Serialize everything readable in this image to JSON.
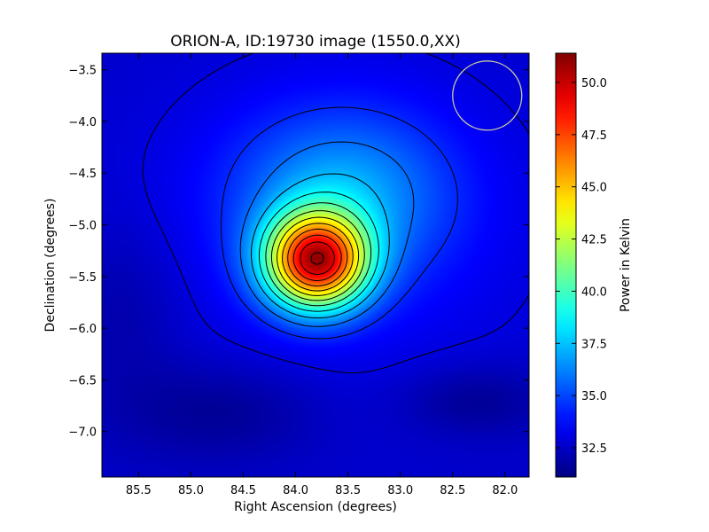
{
  "chart_data": {
    "type": "heatmap",
    "title": "ORION-A, ID:19730 image (1550.0,XX)",
    "xlabel": "Right Ascension (degrees)",
    "ylabel": "Declination (degrees)",
    "colorbar_label": "Power in Kelvin",
    "xlim": [
      85.85,
      81.77
    ],
    "ylim": [
      -7.44,
      -3.34
    ],
    "x_ticks": [
      85.5,
      85.0,
      84.5,
      84.0,
      83.5,
      83.0,
      82.5,
      82.0
    ],
    "x_tick_labels": [
      "85.5",
      "85.0",
      "84.5",
      "84.0",
      "83.5",
      "83.0",
      "82.5",
      "82.0"
    ],
    "y_ticks": [
      -3.5,
      -4.0,
      -4.5,
      -5.0,
      -5.5,
      -6.0,
      -6.5,
      -7.0
    ],
    "y_tick_labels": [
      "−3.5",
      "−4.0",
      "−4.5",
      "−5.0",
      "−5.5",
      "−6.0",
      "−6.5",
      "−7.0"
    ],
    "colorbar_range": [
      31.1,
      51.4
    ],
    "colorbar_ticks": [
      32.5,
      35.0,
      37.5,
      40.0,
      42.5,
      45.0,
      47.5,
      50.0
    ],
    "colorbar_tick_labels": [
      "32.5",
      "35.0",
      "37.5",
      "40.0",
      "42.5",
      "45.0",
      "47.5",
      "50.0"
    ],
    "colormap": "jet",
    "grid": false,
    "peak": {
      "ra": 83.8,
      "dec": -5.35,
      "value": 51.4
    },
    "background_level": 32.5,
    "contour_levels": [
      33.0,
      34.4,
      35.8,
      37.3,
      38.8,
      40.3,
      41.8,
      43.3,
      44.8,
      46.3,
      47.8,
      49.3,
      50.8
    ],
    "beam_circle": {
      "ra": 82.17,
      "dec": -3.75,
      "radius_deg": 0.33,
      "color": "#c8c8a0"
    }
  }
}
